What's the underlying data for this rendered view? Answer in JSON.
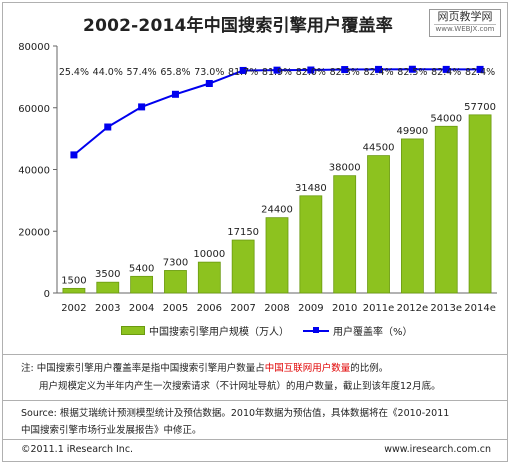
{
  "header": {
    "title": "2002-2014年中国搜索引擎用户覆盖率",
    "watermark_cn": "网页教学网",
    "watermark_en": "www.WEBJX.com"
  },
  "chart_data": {
    "type": "bar",
    "categories": [
      "2002",
      "2003",
      "2004",
      "2005",
      "2006",
      "2007",
      "2008",
      "2009",
      "2010",
      "2011e",
      "2012e",
      "2013e",
      "2014e"
    ],
    "ylim": [
      0,
      80000
    ],
    "yticks": [
      "0",
      "20000",
      "40000",
      "60000",
      "80000"
    ],
    "series": [
      {
        "name": "中国搜索引擎用户规模（万人）",
        "type": "bar",
        "color": "#8dc21f",
        "values": [
          1500,
          3500,
          5400,
          7300,
          10000,
          17150,
          24400,
          31480,
          38000,
          44500,
          49900,
          54000,
          57700
        ],
        "labels": [
          "1500",
          "3500",
          "5400",
          "7300",
          "10000",
          "17150",
          "24400",
          "31480",
          "38000",
          "44500",
          "49900",
          "54000",
          "57700"
        ]
      },
      {
        "name": "用户覆盖率（%）",
        "type": "line",
        "color": "#0000ee",
        "values": [
          25.4,
          44.0,
          57.4,
          65.8,
          73.0,
          81.7,
          81.9,
          82.0,
          82.3,
          82.4,
          82.5,
          82.4,
          82.4
        ],
        "labels": [
          "25.4%",
          "44.0%",
          "57.4%",
          "65.8%",
          "73.0%",
          "81.7%",
          "81.9%",
          "82.0%",
          "82.3%",
          "82.4%",
          "82.5%",
          "82.4%",
          "82.4%"
        ]
      }
    ],
    "legend_position": "bottom",
    "grid": false
  },
  "notes": {
    "line1_a": "注: 中国搜索引擎用户覆盖率是指中国搜索引擎用户数量占",
    "line1_hl": "中国互联网用户数量",
    "line1_b": "的比例。",
    "line2": "用户规模定义为半年内产生一次搜索请求（不计网址导航）的用户数量，截止到该年度12月底。",
    "source1": "Source: 根据艾瑞统计预测模型统计及预估数据。2010年数据为预估值，具体数据将在《2010-2011",
    "source2": "中国搜索引擎市场行业发展报告》中修正。"
  },
  "footer": {
    "copyright": "©2011.1 iResearch Inc.",
    "url": "www.iresearch.com.cn"
  }
}
